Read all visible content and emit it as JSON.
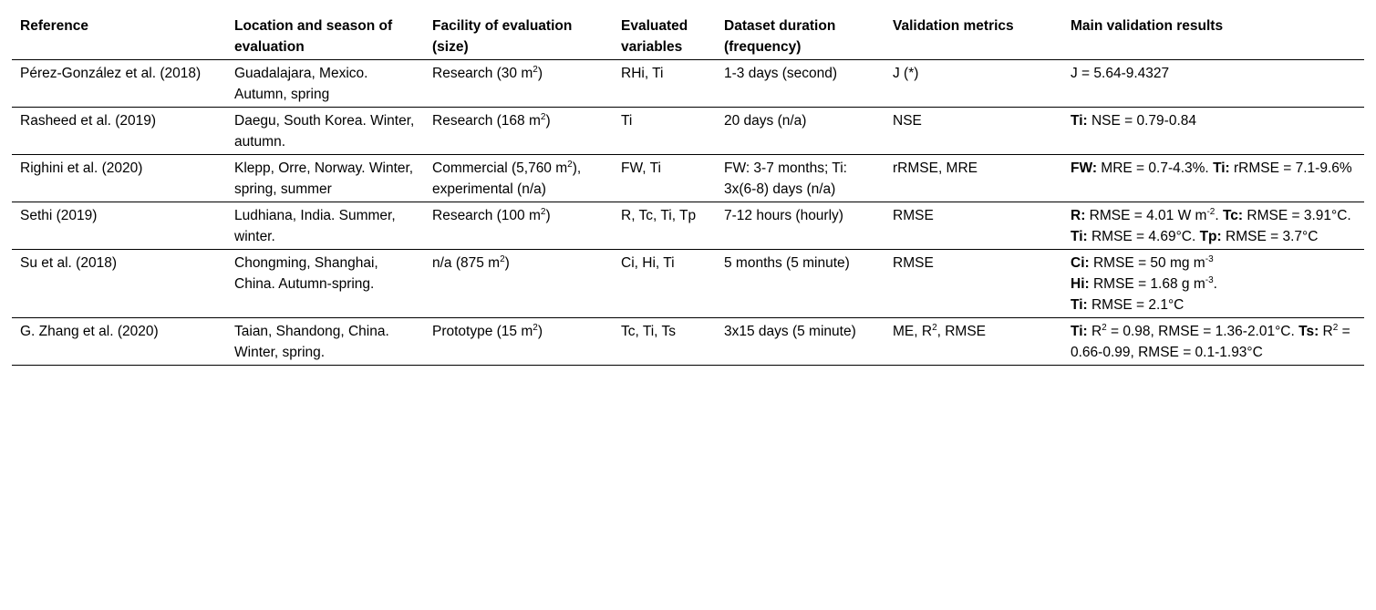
{
  "columns": [
    "Reference",
    "Location and season of evaluation",
    "Facility of evaluation (size)",
    "Evaluated variables",
    "Dataset duration (frequency)",
    "Validation metrics",
    "Main validation results"
  ],
  "rows": [
    {
      "reference": "Pérez-González et al. (2018)",
      "location": "Guadalajara, Mexico. Autumn, spring",
      "facility": [
        {
          "t": "Research (30 m"
        },
        {
          "sup": "2"
        },
        {
          "t": ")"
        }
      ],
      "variables": "RHi, Ti",
      "duration": "1-3 days (second)",
      "metrics": [
        {
          "t": "J (*)"
        }
      ],
      "results": [
        {
          "t": "J = 5.64-9.4327"
        }
      ]
    },
    {
      "reference": "Rasheed et al. (2019)",
      "location": "Daegu, South Korea. Winter, autumn.",
      "facility": [
        {
          "t": "Research (168 m"
        },
        {
          "sup": "2"
        },
        {
          "t": ")"
        }
      ],
      "variables": "Ti",
      "duration": "20 days (n/a)",
      "metrics": [
        {
          "t": "NSE"
        }
      ],
      "results": [
        {
          "b": "Ti:"
        },
        {
          "t": " NSE = 0.79-0.84"
        }
      ]
    },
    {
      "reference": "Righini et al. (2020)",
      "location": "Klepp, Orre, Norway. Winter, spring, summer",
      "facility": [
        {
          "t": "Commercial (5,760 m"
        },
        {
          "sup": "2"
        },
        {
          "t": "), experimental (n/a)"
        }
      ],
      "variables": "FW, Ti",
      "duration": "FW: 3-7 months; Ti: 3x(6-8) days (n/a)",
      "metrics": [
        {
          "t": "rRMSE, MRE"
        }
      ],
      "results": [
        {
          "b": "FW:"
        },
        {
          "t": " MRE = 0.7-4.3%. "
        },
        {
          "b": "Ti:"
        },
        {
          "t": " rRMSE = 7.1-9.6%"
        }
      ]
    },
    {
      "reference": "Sethi (2019)",
      "location": "Ludhiana, India. Summer, winter.",
      "facility": [
        {
          "t": "Research (100 m"
        },
        {
          "sup": "2"
        },
        {
          "t": ")"
        }
      ],
      "variables": "R, Tc, Ti, Tp",
      "duration": "7-12 hours (hourly)",
      "metrics": [
        {
          "t": "RMSE"
        }
      ],
      "results": [
        {
          "b": "R:"
        },
        {
          "t": " RMSE = 4.01 W m"
        },
        {
          "sup": "-2"
        },
        {
          "t": ". "
        },
        {
          "b": "Tc:"
        },
        {
          "t": " RMSE = 3.91°C. "
        },
        {
          "b": "Ti:"
        },
        {
          "t": " RMSE = 4.69°C. "
        },
        {
          "b": "Tp:"
        },
        {
          "t": " RMSE = 3.7°C"
        }
      ]
    },
    {
      "reference": "Su et al. (2018)",
      "location": "Chongming, Shanghai, China. Autumn-spring.",
      "facility": [
        {
          "t": "n/a (875 m"
        },
        {
          "sup": "2"
        },
        {
          "t": ")"
        }
      ],
      "variables": "Ci, Hi, Ti",
      "duration": "5 months (5 minute)",
      "metrics": [
        {
          "t": "RMSE"
        }
      ],
      "results": [
        {
          "b": "Ci:"
        },
        {
          "t": " RMSE = 50 mg m"
        },
        {
          "sup": "-3"
        },
        {
          "br": true
        },
        {
          "b": "Hi:"
        },
        {
          "t": " RMSE = 1.68 g m"
        },
        {
          "sup": "-3"
        },
        {
          "t": "."
        },
        {
          "br": true
        },
        {
          "b": "Ti:"
        },
        {
          "t": " RMSE = 2.1°C"
        }
      ]
    },
    {
      "reference": "G. Zhang et al. (2020)",
      "location": "Taian, Shandong, China. Winter, spring.",
      "facility": [
        {
          "t": "Prototype (15 m"
        },
        {
          "sup": "2"
        },
        {
          "t": ")"
        }
      ],
      "variables": "Tc, Ti, Ts",
      "duration": "3x15 days (5 minute)",
      "metrics": [
        {
          "t": "ME, R"
        },
        {
          "sup": "2"
        },
        {
          "t": ", RMSE"
        }
      ],
      "results": [
        {
          "b": "Ti:"
        },
        {
          "t": " R"
        },
        {
          "sup": "2"
        },
        {
          "t": " = 0.98, RMSE = 1.36-2.01°C. "
        },
        {
          "b": "Ts:"
        },
        {
          "t": " R"
        },
        {
          "sup": "2"
        },
        {
          "t": " =  0.66-0.99, RMSE = 0.1-1.93°C"
        }
      ]
    }
  ]
}
